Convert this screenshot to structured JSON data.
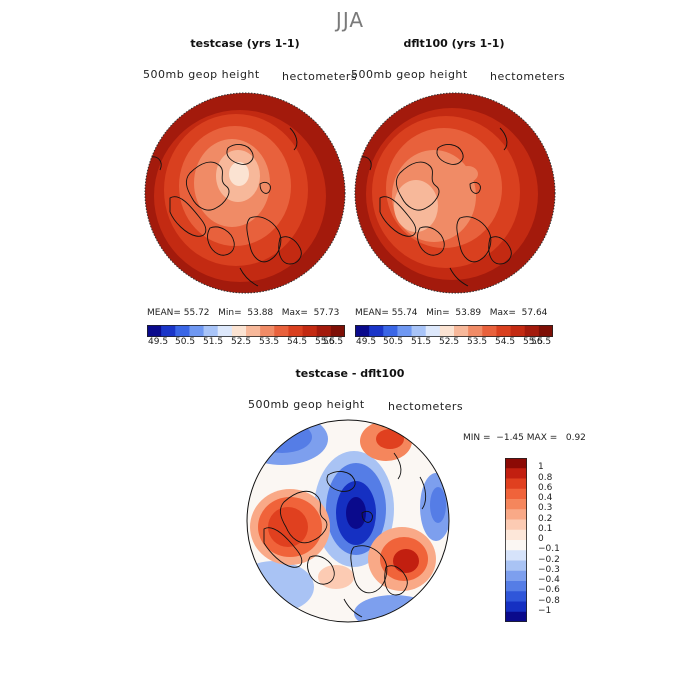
{
  "page": {
    "title": "JJA"
  },
  "chart_data": [
    {
      "type": "heatmap",
      "projection": "north polar stereographic",
      "title": "testcase (yrs 1-1)",
      "variable_label": "500mb geop height",
      "units_label": "hectometers",
      "stats": {
        "mean_label": "MEAN=",
        "mean": "55.72",
        "min_label": "Min=",
        "min": "53.88",
        "max_label": "Max=",
        "max": "57.73"
      },
      "colorbar": {
        "orientation": "horizontal",
        "levels": [
          "49.5",
          "50.5",
          "51.5",
          "52.5",
          "53.5",
          "54.5",
          "55.5",
          "56.5"
        ],
        "colors": [
          "#0a0a8c",
          "#1a35c8",
          "#3a66e6",
          "#6f98f2",
          "#a8c4f8",
          "#dde8fb",
          "#fbe3d2",
          "#f7b89a",
          "#f08b66",
          "#e8613c",
          "#d9401f",
          "#c32a12",
          "#a31a0c",
          "#7e0f06"
        ]
      },
      "field_description_levels": {
        "pole": "54.0",
        "mid": "55.5",
        "edge": "57.5"
      }
    },
    {
      "type": "heatmap",
      "projection": "north polar stereographic",
      "title": "dflt100 (yrs 1-1)",
      "variable_label": "500mb geop height",
      "units_label": "hectometers",
      "stats": {
        "mean_label": "MEAN=",
        "mean": "55.74",
        "min_label": "Min=",
        "min": "53.89",
        "max_label": "Max=",
        "max": "57.64"
      },
      "colorbar": {
        "orientation": "horizontal",
        "levels": [
          "49.5",
          "50.5",
          "51.5",
          "52.5",
          "53.5",
          "54.5",
          "55.5",
          "56.5"
        ],
        "colors": [
          "#0a0a8c",
          "#1a35c8",
          "#3a66e6",
          "#6f98f2",
          "#a8c4f8",
          "#dde8fb",
          "#fbe3d2",
          "#f7b89a",
          "#f08b66",
          "#e8613c",
          "#d9401f",
          "#c32a12",
          "#a31a0c",
          "#7e0f06"
        ]
      }
    },
    {
      "type": "heatmap",
      "projection": "north polar stereographic",
      "title": "testcase - dflt100",
      "variable_label": "500mb geop height",
      "units_label": "hectometers",
      "stats": {
        "min_label": "MIN =",
        "min": "−1.45",
        "max_label": "MAX =",
        "max": "0.92"
      },
      "colorbar": {
        "orientation": "vertical",
        "levels": [
          "1",
          "0.8",
          "0.6",
          "0.4",
          "0.3",
          "0.2",
          "0.1",
          "0",
          "−0.1",
          "−0.2",
          "−0.3",
          "−0.4",
          "−0.6",
          "−0.8",
          "−1"
        ],
        "colors": [
          "#8c0a05",
          "#c21f10",
          "#e0401f",
          "#f0633a",
          "#f5865c",
          "#f9a987",
          "#fccbb3",
          "#fde7d9",
          "#fbf7f3",
          "#d6e3fa",
          "#a9c3f4",
          "#7d9fee",
          "#557de6",
          "#2f56d9",
          "#1530c2",
          "#0a0a8c"
        ]
      }
    }
  ]
}
